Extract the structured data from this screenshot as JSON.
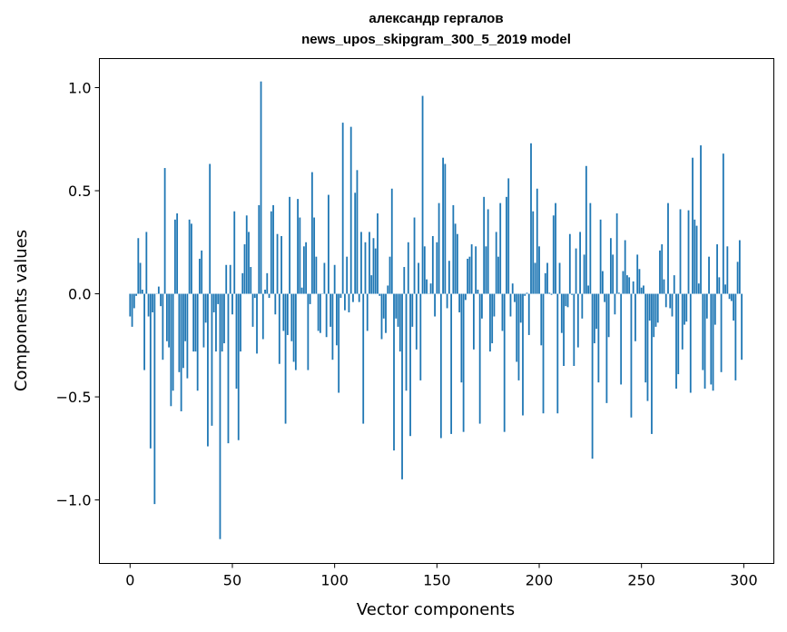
{
  "chart_data": {
    "type": "bar",
    "title_line1": "александр гергалов",
    "title_line2": "news_upos_skipgram_300_5_2019 model",
    "xlabel": "Vector components",
    "ylabel": "Components values",
    "xlim": [
      -15,
      314.7
    ],
    "ylim": [
      -1.308,
      1.141
    ],
    "xticks": [
      0,
      50,
      100,
      150,
      200,
      250,
      300
    ],
    "xtick_labels": [
      "0",
      "50",
      "100",
      "150",
      "200",
      "250",
      "300"
    ],
    "yticks": [
      -1.0,
      -0.5,
      0.0,
      0.5,
      1.0
    ],
    "ytick_labels": [
      "−1.0",
      "−0.5",
      "0.0",
      "0.5",
      "1.0"
    ],
    "grid": false,
    "bar_color": "#1f77b4",
    "values": [
      -0.11,
      -0.16,
      -0.07,
      -0.01,
      0.27,
      0.15,
      0.02,
      -0.37,
      0.3,
      -0.11,
      -0.75,
      -0.09,
      -1.02,
      0.0,
      0.035,
      -0.06,
      -0.32,
      0.61,
      -0.23,
      -0.26,
      -0.545,
      -0.47,
      0.36,
      0.39,
      -0.38,
      -0.57,
      -0.36,
      -0.23,
      -0.41,
      0.36,
      0.34,
      -0.28,
      -0.28,
      -0.47,
      0.17,
      0.21,
      -0.26,
      -0.14,
      -0.74,
      0.63,
      -0.64,
      -0.09,
      -0.28,
      -0.05,
      -1.19,
      -0.28,
      -0.24,
      0.14,
      -0.725,
      0.14,
      -0.1,
      0.4,
      -0.46,
      -0.71,
      -0.28,
      0.1,
      0.24,
      0.38,
      0.3,
      0.13,
      -0.16,
      -0.02,
      -0.29,
      0.43,
      1.03,
      -0.22,
      0.02,
      0.1,
      -0.02,
      0.4,
      0.43,
      -0.1,
      0.29,
      -0.34,
      0.28,
      -0.18,
      -0.63,
      -0.2,
      0.47,
      -0.23,
      -0.33,
      -0.37,
      0.46,
      0.37,
      0.03,
      0.23,
      0.25,
      -0.37,
      -0.05,
      0.59,
      0.37,
      0.18,
      -0.18,
      -0.19,
      0.0,
      0.15,
      -0.21,
      0.48,
      -0.16,
      -0.32,
      0.14,
      -0.25,
      -0.48,
      -0.02,
      0.83,
      -0.08,
      0.18,
      -0.09,
      0.81,
      -0.04,
      0.49,
      0.6,
      -0.04,
      0.3,
      -0.63,
      0.25,
      -0.18,
      0.3,
      0.09,
      0.27,
      0.22,
      0.39,
      -0.01,
      -0.22,
      -0.12,
      -0.19,
      0.04,
      0.18,
      0.51,
      -0.76,
      -0.12,
      -0.16,
      -0.28,
      -0.9,
      0.13,
      -0.47,
      0.25,
      -0.69,
      -0.16,
      0.37,
      -0.27,
      0.15,
      -0.42,
      0.96,
      0.23,
      0.07,
      0.0,
      0.05,
      0.28,
      -0.11,
      0.25,
      0.44,
      -0.7,
      0.66,
      0.63,
      -0.07,
      0.16,
      -0.68,
      0.43,
      0.34,
      0.29,
      -0.09,
      -0.43,
      -0.67,
      -0.03,
      0.17,
      0.18,
      0.24,
      -0.27,
      0.23,
      0.02,
      -0.63,
      -0.12,
      0.47,
      0.23,
      0.41,
      -0.28,
      -0.24,
      -0.11,
      0.3,
      0.18,
      0.44,
      -0.18,
      -0.67,
      0.47,
      0.56,
      -0.11,
      0.05,
      -0.04,
      -0.33,
      -0.42,
      -0.14,
      -0.59,
      -0.01,
      0.005,
      -0.2,
      0.73,
      0.4,
      0.15,
      0.51,
      0.23,
      -0.25,
      -0.58,
      0.1,
      0.15,
      0.005,
      -0.005,
      0.38,
      0.44,
      -0.58,
      0.15,
      -0.19,
      -0.35,
      -0.06,
      -0.065,
      0.29,
      -0.005,
      -0.35,
      0.22,
      -0.26,
      0.3,
      -0.12,
      0.19,
      0.62,
      0.04,
      0.44,
      -0.8,
      -0.24,
      -0.17,
      -0.43,
      0.36,
      0.11,
      -0.04,
      -0.53,
      -0.21,
      0.27,
      0.19,
      -0.1,
      0.39,
      0.005,
      -0.44,
      0.11,
      0.26,
      0.09,
      0.08,
      -0.6,
      0.06,
      -0.23,
      0.19,
      0.12,
      0.03,
      0.04,
      -0.43,
      -0.52,
      -0.13,
      -0.68,
      -0.21,
      -0.16,
      -0.14,
      0.21,
      0.24,
      0.07,
      -0.065,
      0.44,
      -0.07,
      -0.11,
      0.09,
      -0.46,
      -0.39,
      0.41,
      -0.27,
      -0.15,
      -0.135,
      0.405,
      -0.48,
      0.66,
      0.36,
      0.33,
      0.05,
      0.72,
      -0.37,
      -0.46,
      -0.12,
      0.18,
      -0.44,
      -0.47,
      -0.15,
      0.24,
      0.08,
      -0.38,
      0.68,
      0.045,
      0.23,
      -0.025,
      -0.035,
      -0.13,
      -0.42,
      0.155,
      0.26,
      -0.32
    ]
  }
}
